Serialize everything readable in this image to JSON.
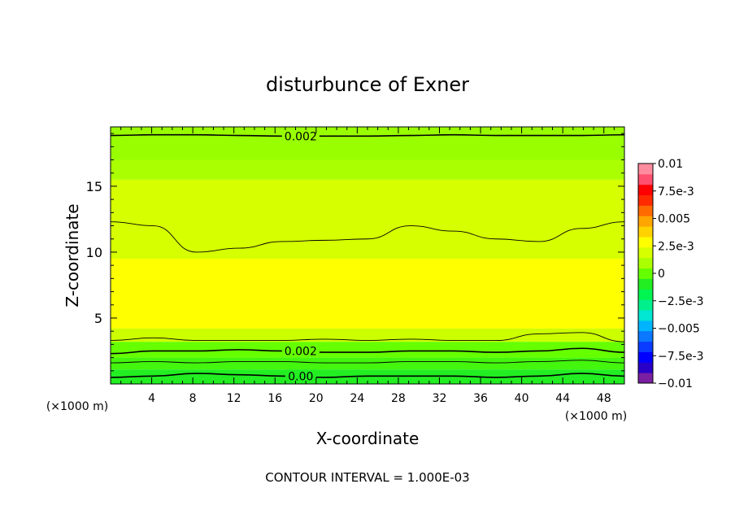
{
  "chart_data": {
    "type": "heatmap",
    "title": "disturbunce of Exner",
    "xlabel": "X-coordinate",
    "ylabel": "Z-coordinate",
    "x_unit_left": "(×1000 m)",
    "x_unit_right": "(×1000 m)",
    "footer": "CONTOUR INTERVAL = 1.000E-03",
    "xlim": [
      0,
      50
    ],
    "ylim": [
      0,
      19.5
    ],
    "x_ticks": [
      4,
      8,
      12,
      16,
      20,
      24,
      28,
      32,
      36,
      40,
      44,
      48
    ],
    "y_ticks": [
      5,
      10,
      15
    ],
    "colorbar": {
      "range": [
        -0.01,
        0.01
      ],
      "labels": [
        {
          "value": 0.01,
          "text": "0.01"
        },
        {
          "value": 0.0075,
          "text": "7.5e-3"
        },
        {
          "value": 0.005,
          "text": "0.005"
        },
        {
          "value": 0.0025,
          "text": "2.5e-3"
        },
        {
          "value": 0,
          "text": "0"
        },
        {
          "value": -0.0025,
          "text": "−2.5e-3"
        },
        {
          "value": -0.005,
          "text": "−0.005"
        },
        {
          "value": -0.0075,
          "text": "−7.5e-3"
        },
        {
          "value": -0.01,
          "text": "−0.01"
        }
      ],
      "colors": [
        "#7a1fa2",
        "#2a00c8",
        "#0000ff",
        "#0a3cff",
        "#0a78ff",
        "#00b4ff",
        "#00e6d2",
        "#00f08c",
        "#00f550",
        "#22ee22",
        "#66ff00",
        "#aaff00",
        "#d6ff00",
        "#ffff00",
        "#ffd200",
        "#ffa500",
        "#ff6a00",
        "#ff2a00",
        "#ff0000",
        "#ff5070",
        "#ff8c9e"
      ]
    },
    "bands": [
      {
        "z": [
          0,
          0.4
        ],
        "value": 0.0003,
        "color": "#22ee22"
      },
      {
        "z": [
          0.4,
          1.1
        ],
        "value": 0.0006,
        "color": "#22ee22"
      },
      {
        "z": [
          1.1,
          2.0
        ],
        "value": 0.0012,
        "color": "#44f50e"
      },
      {
        "z": [
          2.0,
          3.2
        ],
        "value": 0.0018,
        "color": "#66ff00"
      },
      {
        "z": [
          3.2,
          4.2
        ],
        "value": 0.0028,
        "color": "#ccff00"
      },
      {
        "z": [
          4.2,
          9.5
        ],
        "value": 0.0031,
        "color": "#ffff00"
      },
      {
        "z": [
          9.5,
          15.5
        ],
        "value": 0.0029,
        "color": "#d6ff00"
      },
      {
        "z": [
          15.5,
          17.0
        ],
        "value": 0.0024,
        "color": "#aaff00"
      },
      {
        "z": [
          17.0,
          19.5
        ],
        "value": 0.0021,
        "color": "#99ff00"
      }
    ],
    "contours": [
      {
        "label": "0.002",
        "z": [
          18.85,
          18.9,
          18.9,
          18.85,
          18.8,
          18.8,
          18.8,
          18.85,
          18.9,
          18.85,
          18.85,
          18.85,
          18.9
        ]
      },
      {
        "label": "",
        "z": [
          12.3,
          12.0,
          10.0,
          10.3,
          10.8,
          10.9,
          11.0,
          12.0,
          11.6,
          11.0,
          10.8,
          11.8,
          12.3
        ]
      },
      {
        "label": "",
        "z": [
          3.3,
          3.5,
          3.3,
          3.3,
          3.3,
          3.4,
          3.3,
          3.4,
          3.3,
          3.3,
          3.8,
          3.9,
          3.2
        ]
      },
      {
        "label": "0.002",
        "z": [
          2.3,
          2.5,
          2.5,
          2.6,
          2.5,
          2.4,
          2.4,
          2.5,
          2.5,
          2.4,
          2.5,
          2.7,
          2.4
        ]
      },
      {
        "label": "",
        "z": [
          1.6,
          1.7,
          1.6,
          1.7,
          1.7,
          1.6,
          1.6,
          1.7,
          1.7,
          1.6,
          1.7,
          1.8,
          1.6
        ]
      },
      {
        "label": "0.00",
        "z": [
          0.5,
          0.6,
          0.8,
          0.7,
          0.6,
          0.5,
          0.6,
          0.6,
          0.6,
          0.5,
          0.6,
          0.8,
          0.6
        ]
      }
    ]
  }
}
